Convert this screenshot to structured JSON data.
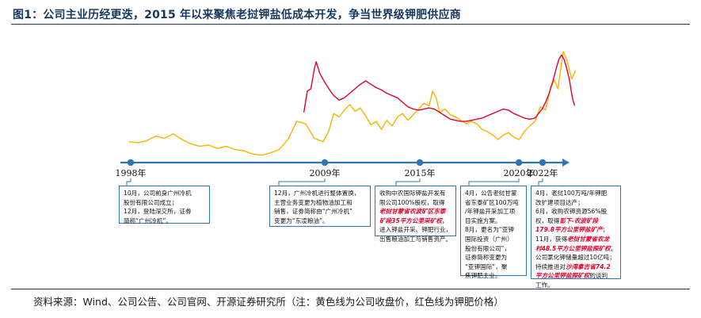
{
  "title": "图1：公司主业历经更迭，2015 年以来聚焦老挝钾盐低成本开发，争当世界级钾肥供应商",
  "source": "资料来源：Wind、公司公告、公司官网、开源证券研究所（注：黄色线为公司收盘价，红色线为钾肥价格）",
  "colors": {
    "stock_line": "#f5b400",
    "potash_line": "#e4002b",
    "timeline": "#2e75b6",
    "title": "#17375e",
    "highlight": "#e4002b"
  },
  "timeline": {
    "years": [
      "1998年",
      "2009年",
      "2015年",
      "2020年",
      "2022年"
    ]
  },
  "annotations": [
    {
      "lines": [
        [
          {
            "t": "10月，公司前身广州冷机"
          }
        ],
        [
          {
            "t": "股份有限公司成立；"
          }
        ],
        [
          {
            "t": "12月，登陆深交所，证券"
          }
        ],
        [
          {
            "t": "简称“广州冷机”。"
          }
        ]
      ]
    },
    {
      "lines": [
        [
          {
            "t": "12月，广州冷机进行整体置换，"
          }
        ],
        [
          {
            "t": "主营业务变更为植物油加工和"
          }
        ],
        [
          {
            "t": "销售，证券简称由“广州冷机”"
          }
        ],
        [
          {
            "t": "变更为“东凌粮油”。"
          }
        ]
      ]
    },
    {
      "lines": [
        [
          {
            "t": "收购中农国际钾盐开发有"
          }
        ],
        [
          {
            "t": "限公司100%股权，取得"
          }
        ],
        [
          {
            "t": "老挝甘蒙省农波矿区东泰",
            "h": true
          }
        ],
        [
          {
            "t": "矿段35平方公里采矿权",
            "h": true
          },
          {
            "t": "，"
          }
        ],
        [
          {
            "t": "进入钾盐开采、钾肥行业，"
          }
        ],
        [
          {
            "t": "出售粮油加工与销售资产。"
          }
        ]
      ]
    },
    {
      "lines": [
        [
          {
            "t": "4月，公告老挝甘蒙"
          }
        ],
        [
          {
            "t": "省东泰矿区100万吨"
          }
        ],
        [
          {
            "t": "/年钾盐开采加工项"
          }
        ],
        [
          {
            "t": "目实施方案。"
          }
        ],
        [
          {
            "t": "8月，更名为“亚钾"
          }
        ],
        [
          {
            "t": "国际投资（广州）"
          }
        ],
        [
          {
            "t": "股份有限公司”，"
          }
        ],
        [
          {
            "t": "证券简称变更为"
          }
        ],
        [
          {
            "t": "“亚钾国际”，聚"
          }
        ],
        [
          {
            "t": "焦钾肥主业。"
          }
        ]
      ]
    },
    {
      "lines": [
        [
          {
            "t": "4月，老挝100万吨/年钾肥"
          }
        ],
        [
          {
            "t": "改扩建项目达产；"
          }
        ],
        [
          {
            "t": "6月，收购农钾资源56%股"
          }
        ],
        [
          {
            "t": "权，取得"
          },
          {
            "t": "彭下-农波矿段",
            "h": true
          }
        ],
        [
          {
            "t": "179.8平方公里钾盐矿产",
            "h": true
          },
          {
            "t": "；"
          }
        ],
        [
          {
            "t": "11月，获得"
          },
          {
            "t": "老挝甘蒙省农龙",
            "h": true
          }
        ],
        [
          {
            "t": "村48.5平方公里钾盐探矿权",
            "h": true
          },
          {
            "t": "，"
          }
        ],
        [
          {
            "t": "公司氯化钾储量超过10亿吨；"
          }
        ],
        [
          {
            "t": "持续推进对"
          },
          {
            "t": "沙湾拿吉省74.2",
            "h": true
          }
        ],
        [
          {
            "t": "平方公里钾盐探矿权",
            "h": true
          },
          {
            "t": "的谈判"
          }
        ],
        [
          {
            "t": "工作。"
          }
        ]
      ]
    }
  ],
  "chart_data": {
    "type": "line",
    "title": "",
    "xlabel": "",
    "ylabel": "",
    "x_range": [
      1998.0,
      2023.0
    ],
    "y_range": [
      0,
      100
    ],
    "y_note_units": "relative (unlabeled axis, normalized 0-100)",
    "grid": false,
    "legend": "none",
    "series": [
      {
        "color": "#f5b400",
        "points": [
          [
            1998.0,
            15
          ],
          [
            1998.5,
            14
          ],
          [
            1999.0,
            16
          ],
          [
            1999.5,
            20
          ],
          [
            2000.0,
            18
          ],
          [
            2000.5,
            22
          ],
          [
            2001.0,
            17
          ],
          [
            2001.5,
            13
          ],
          [
            2002.0,
            11
          ],
          [
            2002.5,
            12
          ],
          [
            2003.0,
            9
          ],
          [
            2003.5,
            11
          ],
          [
            2004.0,
            8
          ],
          [
            2004.5,
            7
          ],
          [
            2005.0,
            4
          ],
          [
            2005.5,
            3
          ],
          [
            2006.0,
            5
          ],
          [
            2006.5,
            8
          ],
          [
            2007.0,
            17
          ],
          [
            2007.5,
            33
          ],
          [
            2008.0,
            31
          ],
          [
            2008.5,
            18
          ],
          [
            2009.0,
            15
          ],
          [
            2009.3,
            24
          ],
          [
            2009.6,
            40
          ],
          [
            2009.9,
            37
          ],
          [
            2010.2,
            43
          ],
          [
            2010.5,
            48
          ],
          [
            2010.8,
            42
          ],
          [
            2011.1,
            45
          ],
          [
            2011.4,
            38
          ],
          [
            2011.7,
            30
          ],
          [
            2012.0,
            33
          ],
          [
            2012.3,
            26
          ],
          [
            2012.6,
            34
          ],
          [
            2012.9,
            29
          ],
          [
            2013.2,
            37
          ],
          [
            2013.5,
            40
          ],
          [
            2013.8,
            34
          ],
          [
            2014.1,
            39
          ],
          [
            2014.4,
            44
          ],
          [
            2014.7,
            49
          ],
          [
            2015.0,
            47
          ],
          [
            2015.2,
            60
          ],
          [
            2015.4,
            54
          ],
          [
            2015.6,
            41
          ],
          [
            2015.9,
            44
          ],
          [
            2016.2,
            39
          ],
          [
            2016.5,
            37
          ],
          [
            2016.8,
            34
          ],
          [
            2017.1,
            31
          ],
          [
            2017.4,
            33
          ],
          [
            2017.7,
            31
          ],
          [
            2018.0,
            26
          ],
          [
            2018.3,
            24
          ],
          [
            2018.6,
            21
          ],
          [
            2018.9,
            17
          ],
          [
            2019.2,
            21
          ],
          [
            2019.5,
            23
          ],
          [
            2019.8,
            19
          ],
          [
            2020.1,
            17
          ],
          [
            2020.4,
            24
          ],
          [
            2020.7,
            29
          ],
          [
            2021.0,
            33
          ],
          [
            2021.3,
            46
          ],
          [
            2021.6,
            43
          ],
          [
            2021.9,
            64
          ],
          [
            2022.1,
            70
          ],
          [
            2022.3,
            62
          ],
          [
            2022.5,
            85
          ],
          [
            2022.6,
            95
          ],
          [
            2022.75,
            90
          ],
          [
            2022.9,
            82
          ],
          [
            2023.0,
            75
          ],
          [
            2023.1,
            71
          ],
          [
            2023.2,
            75
          ],
          [
            2023.3,
            78
          ]
        ]
      },
      {
        "color": "#e4002b",
        "points": [
          [
            2007.9,
            41
          ],
          [
            2008.1,
            60
          ],
          [
            2008.3,
            62
          ],
          [
            2008.5,
            80
          ],
          [
            2008.6,
            86
          ],
          [
            2008.8,
            76
          ],
          [
            2009.0,
            70
          ],
          [
            2009.2,
            65
          ],
          [
            2009.4,
            60
          ],
          [
            2009.6,
            56
          ],
          [
            2009.9,
            52
          ],
          [
            2010.2,
            54
          ],
          [
            2010.5,
            58
          ],
          [
            2010.8,
            62
          ],
          [
            2011.1,
            66
          ],
          [
            2011.4,
            69
          ],
          [
            2011.7,
            66
          ],
          [
            2012.0,
            63
          ],
          [
            2012.3,
            61
          ],
          [
            2012.6,
            58
          ],
          [
            2012.9,
            56
          ],
          [
            2013.2,
            54
          ],
          [
            2013.5,
            50
          ],
          [
            2013.8,
            46
          ],
          [
            2014.1,
            44
          ],
          [
            2014.4,
            43
          ],
          [
            2014.7,
            44
          ],
          [
            2015.0,
            45
          ],
          [
            2015.3,
            44
          ],
          [
            2015.6,
            41
          ],
          [
            2015.9,
            38
          ],
          [
            2016.2,
            35
          ],
          [
            2016.5,
            34
          ],
          [
            2016.8,
            33
          ],
          [
            2017.1,
            33
          ],
          [
            2017.4,
            34
          ],
          [
            2017.7,
            35
          ],
          [
            2018.0,
            36
          ],
          [
            2018.3,
            38
          ],
          [
            2018.6,
            40
          ],
          [
            2018.9,
            42
          ],
          [
            2019.2,
            44
          ],
          [
            2019.5,
            43
          ],
          [
            2019.8,
            40
          ],
          [
            2020.1,
            38
          ],
          [
            2020.4,
            36
          ],
          [
            2020.7,
            35
          ],
          [
            2021.0,
            36
          ],
          [
            2021.2,
            40
          ],
          [
            2021.4,
            44
          ],
          [
            2021.6,
            50
          ],
          [
            2021.8,
            58
          ],
          [
            2022.0,
            68
          ],
          [
            2022.2,
            80
          ],
          [
            2022.35,
            88
          ],
          [
            2022.5,
            92
          ],
          [
            2022.65,
            88
          ],
          [
            2022.8,
            80
          ],
          [
            2022.95,
            70
          ],
          [
            2023.05,
            60
          ],
          [
            2023.15,
            52
          ],
          [
            2023.25,
            47
          ]
        ]
      }
    ]
  }
}
